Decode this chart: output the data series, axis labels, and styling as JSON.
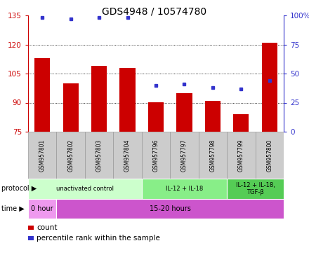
{
  "title": "GDS4948 / 10574780",
  "samples": [
    "GSM957801",
    "GSM957802",
    "GSM957803",
    "GSM957804",
    "GSM957796",
    "GSM957797",
    "GSM957798",
    "GSM957799",
    "GSM957800"
  ],
  "bar_tops": [
    113,
    100,
    109,
    108,
    90,
    95,
    91,
    84,
    121
  ],
  "bar_bottom": 75,
  "percentile_values": [
    98,
    97,
    98,
    98,
    40,
    41,
    38,
    37,
    44
  ],
  "ylim_left": [
    75,
    135
  ],
  "ylim_right": [
    0,
    100
  ],
  "yticks_left": [
    75,
    90,
    105,
    120,
    135
  ],
  "yticks_right": [
    0,
    25,
    50,
    75,
    100
  ],
  "ytick_labels_right": [
    "0",
    "25",
    "50",
    "75",
    "100%"
  ],
  "grid_values": [
    90,
    105,
    120
  ],
  "bar_color": "#cc0000",
  "dot_color": "#3333cc",
  "protocol_groups": [
    {
      "label": "unactivated control",
      "start": 0,
      "end": 4,
      "color": "#ccffcc"
    },
    {
      "label": "IL-12 + IL-18",
      "start": 4,
      "end": 7,
      "color": "#88ee88"
    },
    {
      "label": "IL-12 + IL-18,\nTGF-β",
      "start": 7,
      "end": 9,
      "color": "#55cc55"
    }
  ],
  "time_groups": [
    {
      "label": "0 hour",
      "start": 0,
      "end": 1,
      "color": "#ee99ee"
    },
    {
      "label": "15-20 hours",
      "start": 1,
      "end": 9,
      "color": "#cc55cc"
    }
  ],
  "protocol_label": "protocol",
  "time_label": "time",
  "legend_count_label": "count",
  "legend_percentile_label": "percentile rank within the sample",
  "bar_color_label": "#cc0000",
  "dot_color_label": "#3333cc",
  "sample_bg_color": "#cccccc",
  "sample_border_color": "#999999",
  "left_axis_color": "#cc0000",
  "right_axis_color": "#3333cc"
}
